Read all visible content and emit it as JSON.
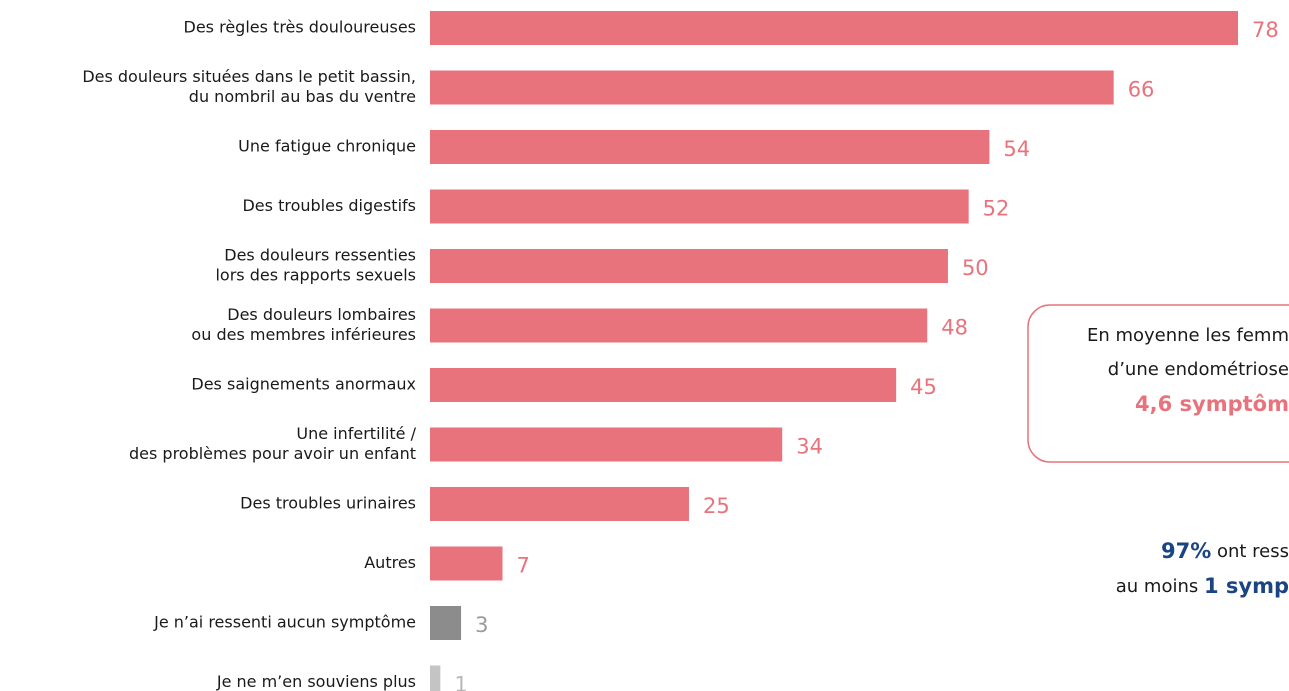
{
  "chart_data": {
    "type": "bar",
    "orientation": "horizontal",
    "categories": [
      [
        "Des règles très douloureuses"
      ],
      [
        "Des douleurs situées dans le petit bassin,",
        "du nombril au bas du ventre"
      ],
      [
        "Une fatigue chronique"
      ],
      [
        "Des troubles digestifs"
      ],
      [
        "Des douleurs ressenties",
        "lors des rapports sexuels"
      ],
      [
        "Des douleurs lombaires",
        "ou des membres inférieures"
      ],
      [
        "Des saignements anormaux"
      ],
      [
        "Une infertilité /",
        "des problèmes pour avoir un enfant"
      ],
      [
        "Des troubles urinaires"
      ],
      [
        "Autres"
      ],
      [
        "Je n’ai ressenti aucun symptôme"
      ],
      [
        "Je ne m’en souviens plus"
      ]
    ],
    "values": [
      78,
      66,
      54,
      52,
      50,
      48,
      45,
      34,
      25,
      7,
      3,
      1
    ],
    "colors": [
      "#e8737c",
      "#e8737c",
      "#e8737c",
      "#e8737c",
      "#e8737c",
      "#e8737c",
      "#e8737c",
      "#e8737c",
      "#e8737c",
      "#e8737c",
      "#8c8c8c",
      "#c4c4c4"
    ],
    "value_label_colors": [
      "#e8737c",
      "#e8737c",
      "#e8737c",
      "#e8737c",
      "#e8737c",
      "#e8737c",
      "#e8737c",
      "#e8737c",
      "#e8737c",
      "#e8737c",
      "#9a9a9a",
      "#b8b8b8"
    ],
    "annotations": [
      {
        "lines": [
          "En moyenne les femm",
          "d’une endométriose",
          "4,6 symptôm"
        ]
      },
      {
        "parts": [
          [
            "97%",
            " ont ress"
          ],
          [
            "au moins ",
            "1 symp"
          ]
        ]
      }
    ]
  }
}
